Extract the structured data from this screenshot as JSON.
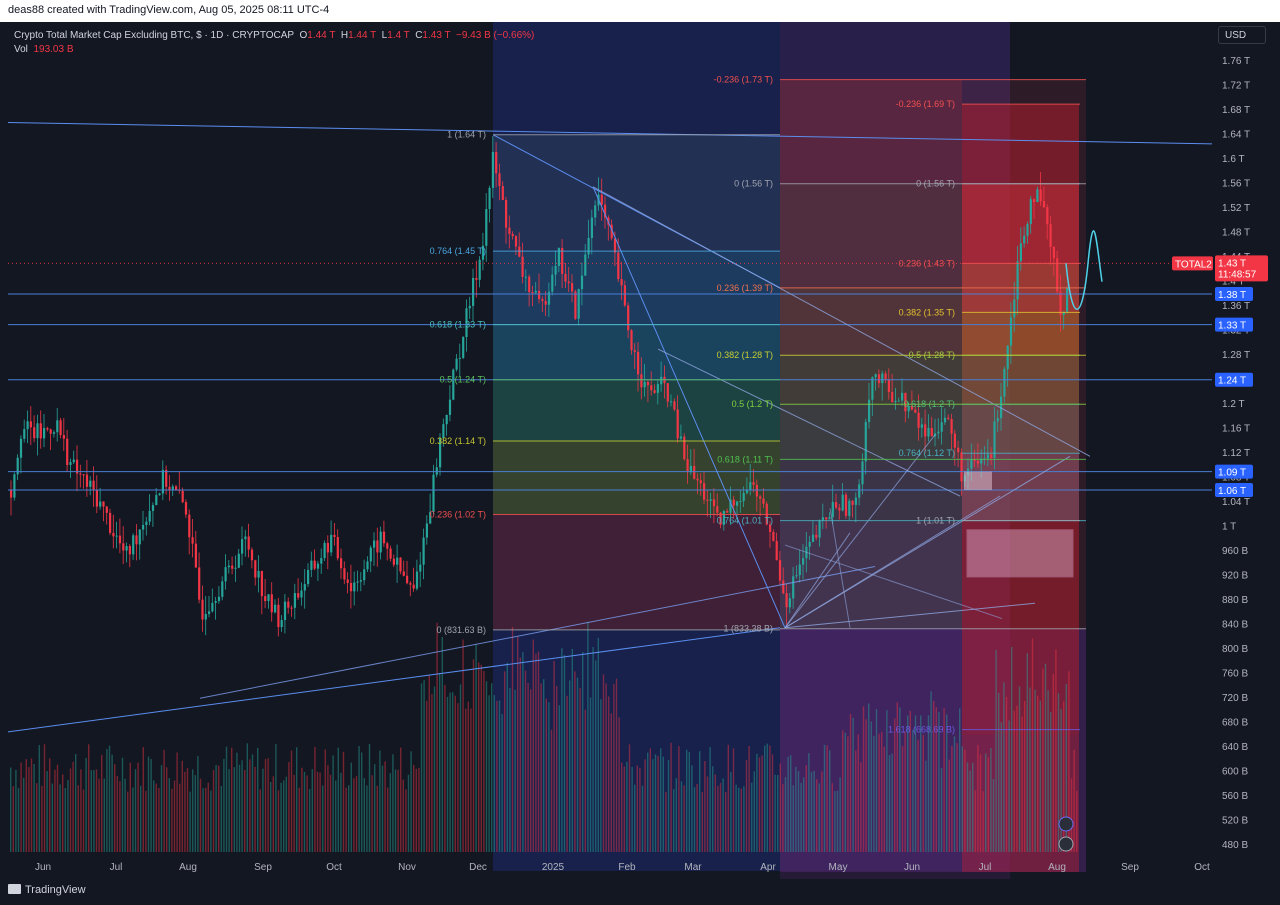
{
  "header": {
    "credit": "deas88 created with TradingView.com, Aug 05, 2025 08:11 UTC-4"
  },
  "legend": {
    "symbol": "Crypto Total Market Cap Excluding BTC, $ · 1D · CRYPTOCAP",
    "o_label": "O",
    "o": "1.44 T",
    "h_label": "H",
    "h": "1.44 T",
    "l_label": "L",
    "l": "1.4 T",
    "c_label": "C",
    "c": "1.43 T",
    "change": "−9.43 B (−0.66%)",
    "vol_label": "Vol",
    "vol": "193.03 B"
  },
  "currency_button": "USD",
  "footer_brand": "TradingView",
  "colors": {
    "up": "#26a69a",
    "down": "#f23645",
    "background": "#131722",
    "trendline": "#5b8def"
  },
  "chart_data": {
    "type": "candlestick",
    "title": "Crypto Total Market Cap Excluding BTC",
    "y_axis_labels": [
      "1.76 T",
      "1.72 T",
      "1.68 T",
      "1.64 T",
      "1.6 T",
      "1.56 T",
      "1.52 T",
      "1.48 T",
      "1.44 T",
      "1.4 T",
      "1.36 T",
      "1.32 T",
      "1.28 T",
      "1.24 T",
      "1.2 T",
      "1.16 T",
      "1.12 T",
      "1.08 T",
      "1.04 T",
      "1 T",
      "960 B",
      "920 B",
      "880 B",
      "840 B",
      "800 B",
      "760 B",
      "720 B",
      "680 B",
      "640 B",
      "600 B",
      "560 B",
      "520 B",
      "480 B"
    ],
    "y_axis_values": [
      1.76,
      1.72,
      1.68,
      1.64,
      1.6,
      1.56,
      1.52,
      1.48,
      1.44,
      1.4,
      1.36,
      1.32,
      1.28,
      1.24,
      1.2,
      1.16,
      1.12,
      1.08,
      1.04,
      1.0,
      0.96,
      0.92,
      0.88,
      0.84,
      0.8,
      0.76,
      0.72,
      0.68,
      0.64,
      0.6,
      0.56,
      0.52,
      0.48
    ],
    "ylim": [
      0.46,
      1.8
    ],
    "x_axis_labels": [
      "Jun",
      "Jul",
      "Aug",
      "Sep",
      "Oct",
      "Nov",
      "Dec",
      "2025",
      "Feb",
      "Mar",
      "Apr",
      "May",
      "Jun",
      "Jul",
      "Aug",
      "Sep",
      "Oct"
    ],
    "price_series": [
      {
        "month": "Jun 2024",
        "close": 1.14
      },
      {
        "month": "Jul 2024",
        "close": 1.06
      },
      {
        "month": "Aug 2024",
        "close": 0.9
      },
      {
        "month": "Sep 2024",
        "close": 0.88
      },
      {
        "month": "Oct 2024",
        "close": 0.92
      },
      {
        "month": "Nov 2024",
        "close": 1.2
      },
      {
        "month": "Dec 2024",
        "close": 1.64
      },
      {
        "month": "Jan 2025",
        "close": 1.5
      },
      {
        "month": "Feb 2025",
        "close": 1.24
      },
      {
        "month": "Mar 2025",
        "close": 1.02
      },
      {
        "month": "Apr 2025",
        "close": 0.83
      },
      {
        "month": "May 2025",
        "close": 1.1
      },
      {
        "month": "Jun 2025",
        "close": 1.08
      },
      {
        "month": "Jul 2025",
        "close": 1.54
      },
      {
        "month": "Aug 2025",
        "close": 1.43
      }
    ],
    "price_tags": [
      {
        "label": "1.38 T",
        "value": 1.38
      },
      {
        "label": "1.33 T",
        "value": 1.33
      },
      {
        "label": "1.24 T",
        "value": 1.24
      },
      {
        "label": "1.09 T",
        "value": 1.09
      },
      {
        "label": "1.06 T",
        "value": 1.06
      }
    ],
    "current": {
      "symbol": "TOTAL2",
      "price": "1.43 T",
      "countdown": "11:48:57",
      "value": 1.43
    },
    "fib_sets": [
      {
        "name": "fib-1",
        "levels": [
          {
            "label": "1 (1.64 T)",
            "value": 1.64
          },
          {
            "label": "0.764 (1.45 T)",
            "value": 1.45
          },
          {
            "label": "0.618 (1.33 T)",
            "value": 1.33
          },
          {
            "label": "0.5 (1.24 T)",
            "value": 1.24
          },
          {
            "label": "0.382 (1.14 T)",
            "value": 1.14
          },
          {
            "label": "0.236 (1.02 T)",
            "value": 1.02
          },
          {
            "label": "0 (831.63 B)",
            "value": 0.8316
          }
        ]
      },
      {
        "name": "fib-2",
        "levels": [
          {
            "label": "-0.236 (1.73 T)",
            "value": 1.73
          },
          {
            "label": "0 (1.56 T)",
            "value": 1.56
          },
          {
            "label": "0.236 (1.39 T)",
            "value": 1.39
          },
          {
            "label": "0.382 (1.28 T)",
            "value": 1.28
          },
          {
            "label": "0.5 (1.2 T)",
            "value": 1.2
          },
          {
            "label": "0.618 (1.11 T)",
            "value": 1.11
          },
          {
            "label": "0.764 (1.01 T)",
            "value": 1.01
          },
          {
            "label": "1 (833.38 B)",
            "value": 0.8334
          }
        ]
      },
      {
        "name": "fib-3",
        "levels": [
          {
            "label": "-0.236 (1.69 T)",
            "value": 1.69
          },
          {
            "label": "0 (1.56 T)",
            "value": 1.56
          },
          {
            "label": "0.236 (1.43 T)",
            "value": 1.43
          },
          {
            "label": "0.382 (1.35 T)",
            "value": 1.35
          },
          {
            "label": "0.5 (1.28 T)",
            "value": 1.28
          },
          {
            "label": "0.618 (1.2 T)",
            "value": 1.2
          },
          {
            "label": "0.764 (1.12 T)",
            "value": 1.12
          },
          {
            "label": "1 (1.01 T)",
            "value": 1.01
          },
          {
            "label": "1.618 (668.69 B)",
            "value": 0.6687
          }
        ]
      }
    ]
  }
}
